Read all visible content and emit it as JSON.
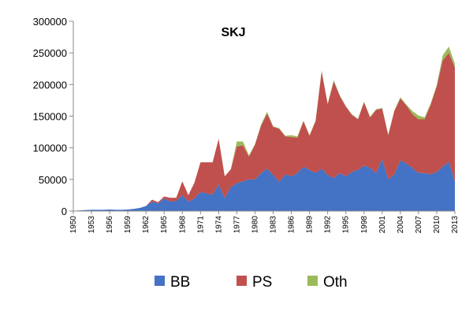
{
  "chart_data": {
    "type": "area",
    "stacked": true,
    "title": "SKJ",
    "xlabel": "",
    "ylabel": "",
    "xlim": [
      1950,
      2013
    ],
    "ylim": [
      0,
      300000
    ],
    "yticks": [
      0,
      50000,
      100000,
      150000,
      200000,
      250000,
      300000
    ],
    "ytick_labels": [
      "0",
      "50000",
      "100000",
      "150000",
      "200000",
      "250000",
      "300000"
    ],
    "xtick_labels": [
      "1950",
      "1953",
      "1956",
      "1959",
      "1962",
      "1965",
      "1968",
      "1971",
      "1974",
      "1977",
      "1980",
      "1983",
      "1986",
      "1989",
      "1992",
      "1995",
      "1998",
      "2001",
      "2004",
      "2007",
      "2010",
      "2013"
    ],
    "grid": false,
    "legend_position": "bottom",
    "x": [
      1950,
      1951,
      1952,
      1953,
      1954,
      1955,
      1956,
      1957,
      1958,
      1959,
      1960,
      1961,
      1962,
      1963,
      1964,
      1965,
      1966,
      1967,
      1968,
      1969,
      1970,
      1971,
      1972,
      1973,
      1974,
      1975,
      1976,
      1977,
      1978,
      1979,
      1980,
      1981,
      1982,
      1983,
      1984,
      1985,
      1986,
      1987,
      1988,
      1989,
      1990,
      1991,
      1992,
      1993,
      1994,
      1995,
      1996,
      1997,
      1998,
      1999,
      2000,
      2001,
      2002,
      2003,
      2004,
      2005,
      2006,
      2007,
      2008,
      2009,
      2010,
      2011,
      2012,
      2013
    ],
    "series": [
      {
        "name": "BB",
        "color": "#4472C4",
        "values": [
          500,
          1000,
          1500,
          2000,
          2000,
          2000,
          2500,
          2000,
          2000,
          2500,
          3500,
          5000,
          8000,
          15000,
          12000,
          20000,
          15000,
          16000,
          25000,
          15000,
          20000,
          30000,
          28000,
          26000,
          42000,
          20000,
          38000,
          44000,
          47000,
          50000,
          50000,
          60000,
          67000,
          57000,
          46000,
          58000,
          55000,
          60000,
          70000,
          65000,
          60000,
          67000,
          57000,
          52000,
          60000,
          55000,
          62000,
          65000,
          72000,
          68000,
          60000,
          82000,
          50000,
          58000,
          80000,
          75000,
          68000,
          60000,
          60000,
          58000,
          62000,
          70000,
          78000,
          47000
        ]
      },
      {
        "name": "PS",
        "color": "#C0504D",
        "values": [
          0,
          0,
          0,
          0,
          0,
          0,
          0,
          0,
          0,
          0,
          0,
          0,
          0,
          3000,
          2000,
          3000,
          6000,
          5000,
          22000,
          10000,
          25000,
          47000,
          49000,
          51000,
          72000,
          35000,
          28000,
          58000,
          57000,
          36000,
          55000,
          75000,
          87000,
          76000,
          84000,
          60000,
          62000,
          56000,
          72000,
          54000,
          82000,
          154000,
          112000,
          153000,
          122000,
          110000,
          90000,
          80000,
          100000,
          80000,
          100000,
          80000,
          70000,
          100000,
          98000,
          92000,
          85000,
          85000,
          85000,
          110000,
          135000,
          168000,
          172000,
          180000
        ]
      },
      {
        "name": "Oth",
        "color": "#9BBB59",
        "values": [
          0,
          0,
          0,
          0,
          0,
          0,
          0,
          0,
          0,
          0,
          0,
          0,
          0,
          0,
          0,
          0,
          0,
          0,
          0,
          0,
          0,
          0,
          0,
          0,
          0,
          0,
          0,
          8000,
          6000,
          2000,
          1000,
          2000,
          3000,
          1000,
          1000,
          1000,
          3000,
          2000,
          1000,
          1000,
          1000,
          1000,
          1000,
          2000,
          1000,
          1000,
          1000,
          1000,
          1000,
          1000,
          1000,
          1000,
          1000,
          1000,
          2000,
          1000,
          5000,
          6000,
          3000,
          2000,
          2000,
          8000,
          10000,
          6000
        ]
      }
    ]
  }
}
